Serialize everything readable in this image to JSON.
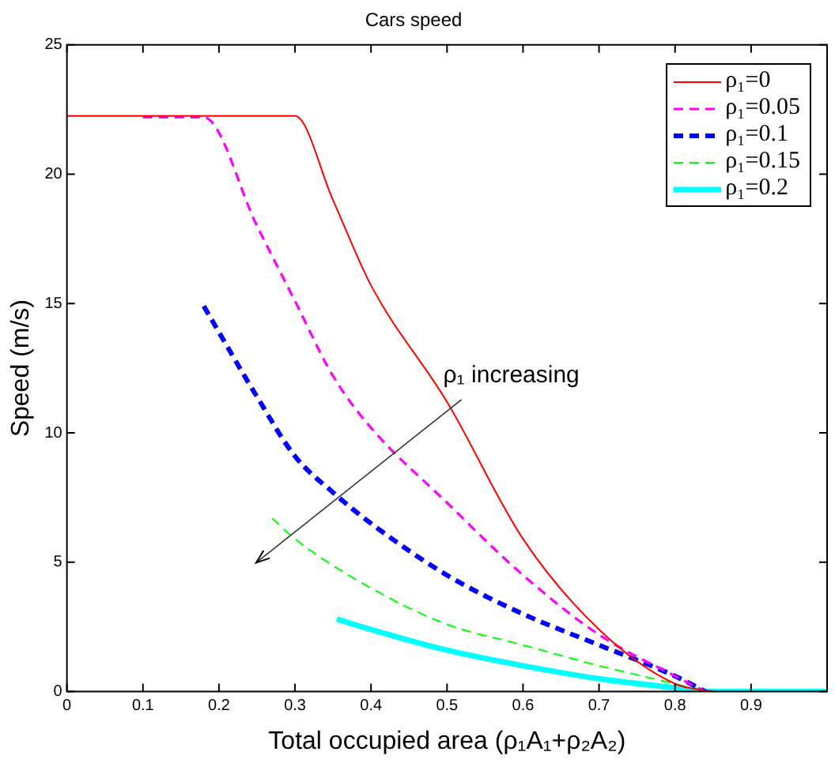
{
  "chart_data": {
    "type": "line",
    "title": "Cars speed",
    "xlabel": "Total occupied area (ρ₁A₁+ρ₂A₂)",
    "ylabel": "Speed (m/s)",
    "xlim": [
      0,
      1
    ],
    "ylim": [
      0,
      25
    ],
    "xticks": [
      0,
      0.1,
      0.2,
      0.3,
      0.4,
      0.5,
      0.6,
      0.7,
      0.8,
      0.9,
      {
        "value": 1,
        "label": null
      }
    ],
    "yticks": [
      0,
      5,
      10,
      15,
      20,
      25
    ],
    "grid": false,
    "legend": "top right",
    "marker": "none",
    "annotations": [
      "ρ₁ increasing"
    ],
    "series": [
      {
        "name": "ρ₁=0",
        "color": "#ff0000",
        "line_style": "solid",
        "x": [
          0,
          0.3,
          0.35,
          0.4,
          0.5,
          0.6,
          0.7,
          0.8,
          0.85
        ],
        "values": [
          22.25,
          22.25,
          19.0,
          15.7,
          11.2,
          5.9,
          2.4,
          0.3,
          0
        ]
      },
      {
        "name": "ρ₁=0.05",
        "color": "#ff00ff",
        "line_style": "dashed",
        "x": [
          0.1,
          0.18,
          0.25,
          0.3,
          0.35,
          0.4,
          0.5,
          0.6,
          0.7,
          0.8,
          0.84
        ],
        "values": [
          22.2,
          22.2,
          18.0,
          15.1,
          12.2,
          10.2,
          7.3,
          4.5,
          2.2,
          0.6,
          0
        ]
      },
      {
        "name": "ρ₁=0.1",
        "color": "#0000ff",
        "line_style": "dashed",
        "x": [
          0.18,
          0.25,
          0.3,
          0.35,
          0.4,
          0.5,
          0.6,
          0.7,
          0.8,
          0.84
        ],
        "values": [
          14.9,
          11.4,
          9.1,
          7.7,
          6.5,
          4.5,
          3.0,
          1.8,
          0.6,
          0
        ]
      },
      {
        "name": "ρ₁=0.15",
        "color": "#00ff00",
        "line_style": "dashed",
        "x": [
          0.27,
          0.3,
          0.4,
          0.5,
          0.6,
          0.7,
          0.8,
          0.84
        ],
        "values": [
          6.7,
          5.9,
          4.0,
          2.6,
          1.8,
          1.0,
          0.3,
          0
        ]
      },
      {
        "name": "ρ₁=0.2",
        "color": "#00ffff",
        "line_style": "solid",
        "x": [
          0.355,
          0.4,
          0.5,
          0.6,
          0.7,
          0.8,
          0.85,
          1
        ],
        "values": [
          2.8,
          2.4,
          1.6,
          1.0,
          0.5,
          0.15,
          0,
          0
        ]
      }
    ]
  }
}
